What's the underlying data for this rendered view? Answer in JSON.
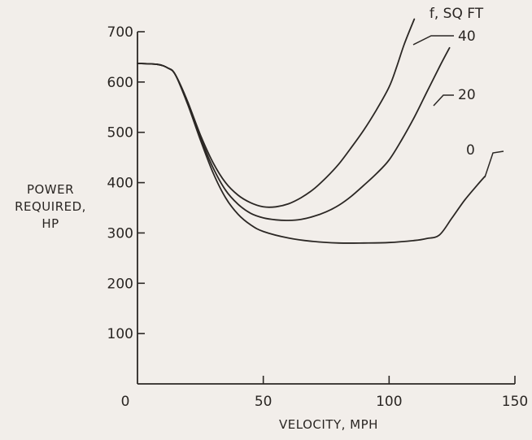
{
  "chart_data": {
    "type": "line",
    "title": "",
    "xlabel": "VELOCITY, MPH",
    "ylabel_lines": [
      "POWER",
      "REQUIRED,",
      "HP"
    ],
    "legend_title": "f, SQ FT",
    "xlim": [
      0,
      150
    ],
    "ylim": [
      0,
      700
    ],
    "xticks": [
      0,
      50,
      100,
      150
    ],
    "xtick_labels": [
      "0",
      "50",
      "100",
      "150"
    ],
    "yticks": [
      100,
      200,
      300,
      400,
      500,
      600,
      700
    ],
    "ytick_labels": [
      "100",
      "200",
      "300",
      "400",
      "500",
      "600",
      "700"
    ],
    "grid": false,
    "series": [
      {
        "name": "40",
        "x": [
          0,
          8,
          12,
          15,
          20,
          25,
          30,
          35,
          40,
          45,
          50,
          55,
          60,
          65,
          70,
          75,
          80,
          85,
          90,
          95,
          100,
          103,
          106,
          110
        ],
        "y": [
          637,
          635,
          628,
          615,
          560,
          495,
          440,
          400,
          375,
          360,
          352,
          352,
          358,
          370,
          387,
          410,
          437,
          470,
          505,
          545,
          590,
          630,
          675,
          725
        ]
      },
      {
        "name": "20",
        "x": [
          0,
          8,
          12,
          15,
          20,
          25,
          30,
          35,
          40,
          45,
          50,
          55,
          60,
          65,
          70,
          75,
          80,
          85,
          90,
          95,
          100,
          105,
          110,
          115,
          120,
          124
        ],
        "y": [
          637,
          635,
          628,
          615,
          560,
          490,
          430,
          385,
          357,
          339,
          330,
          326,
          325,
          327,
          333,
          342,
          355,
          373,
          395,
          418,
          445,
          485,
          530,
          580,
          630,
          668
        ]
      },
      {
        "name": "0",
        "x": [
          0,
          8,
          12,
          15,
          20,
          25,
          30,
          35,
          40,
          45,
          50,
          60,
          70,
          80,
          90,
          100,
          110,
          115,
          120,
          125,
          130,
          135,
          138
        ],
        "y": [
          637,
          635,
          628,
          615,
          555,
          485,
          420,
          370,
          337,
          316,
          303,
          290,
          283,
          280,
          280,
          281,
          285,
          289,
          296,
          330,
          365,
          395,
          412
        ]
      }
    ]
  }
}
